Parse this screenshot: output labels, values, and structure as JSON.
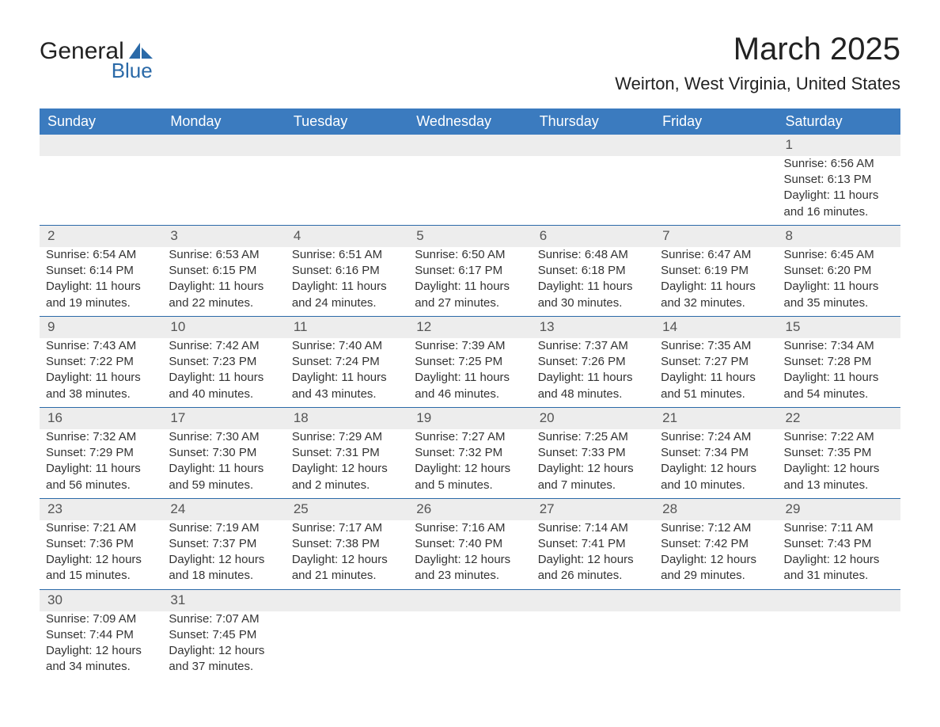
{
  "logo": {
    "general": "General",
    "blue": "Blue"
  },
  "title": "March 2025",
  "location": "Weirton, West Virginia, United States",
  "day_headers": [
    "Sunday",
    "Monday",
    "Tuesday",
    "Wednesday",
    "Thursday",
    "Friday",
    "Saturday"
  ],
  "colors": {
    "header_blue": "#3b7bbf",
    "row_grey": "#ededed",
    "border_blue": "#2b6aa8",
    "logo_blue": "#2b6aa8",
    "text_dark": "#333333",
    "background": "#ffffff"
  },
  "weeks": [
    [
      null,
      null,
      null,
      null,
      null,
      null,
      {
        "n": "1",
        "sunrise": "Sunrise: 6:56 AM",
        "sunset": "Sunset: 6:13 PM",
        "dl1": "Daylight: 11 hours",
        "dl2": "and 16 minutes."
      }
    ],
    [
      {
        "n": "2",
        "sunrise": "Sunrise: 6:54 AM",
        "sunset": "Sunset: 6:14 PM",
        "dl1": "Daylight: 11 hours",
        "dl2": "and 19 minutes."
      },
      {
        "n": "3",
        "sunrise": "Sunrise: 6:53 AM",
        "sunset": "Sunset: 6:15 PM",
        "dl1": "Daylight: 11 hours",
        "dl2": "and 22 minutes."
      },
      {
        "n": "4",
        "sunrise": "Sunrise: 6:51 AM",
        "sunset": "Sunset: 6:16 PM",
        "dl1": "Daylight: 11 hours",
        "dl2": "and 24 minutes."
      },
      {
        "n": "5",
        "sunrise": "Sunrise: 6:50 AM",
        "sunset": "Sunset: 6:17 PM",
        "dl1": "Daylight: 11 hours",
        "dl2": "and 27 minutes."
      },
      {
        "n": "6",
        "sunrise": "Sunrise: 6:48 AM",
        "sunset": "Sunset: 6:18 PM",
        "dl1": "Daylight: 11 hours",
        "dl2": "and 30 minutes."
      },
      {
        "n": "7",
        "sunrise": "Sunrise: 6:47 AM",
        "sunset": "Sunset: 6:19 PM",
        "dl1": "Daylight: 11 hours",
        "dl2": "and 32 minutes."
      },
      {
        "n": "8",
        "sunrise": "Sunrise: 6:45 AM",
        "sunset": "Sunset: 6:20 PM",
        "dl1": "Daylight: 11 hours",
        "dl2": "and 35 minutes."
      }
    ],
    [
      {
        "n": "9",
        "sunrise": "Sunrise: 7:43 AM",
        "sunset": "Sunset: 7:22 PM",
        "dl1": "Daylight: 11 hours",
        "dl2": "and 38 minutes."
      },
      {
        "n": "10",
        "sunrise": "Sunrise: 7:42 AM",
        "sunset": "Sunset: 7:23 PM",
        "dl1": "Daylight: 11 hours",
        "dl2": "and 40 minutes."
      },
      {
        "n": "11",
        "sunrise": "Sunrise: 7:40 AM",
        "sunset": "Sunset: 7:24 PM",
        "dl1": "Daylight: 11 hours",
        "dl2": "and 43 minutes."
      },
      {
        "n": "12",
        "sunrise": "Sunrise: 7:39 AM",
        "sunset": "Sunset: 7:25 PM",
        "dl1": "Daylight: 11 hours",
        "dl2": "and 46 minutes."
      },
      {
        "n": "13",
        "sunrise": "Sunrise: 7:37 AM",
        "sunset": "Sunset: 7:26 PM",
        "dl1": "Daylight: 11 hours",
        "dl2": "and 48 minutes."
      },
      {
        "n": "14",
        "sunrise": "Sunrise: 7:35 AM",
        "sunset": "Sunset: 7:27 PM",
        "dl1": "Daylight: 11 hours",
        "dl2": "and 51 minutes."
      },
      {
        "n": "15",
        "sunrise": "Sunrise: 7:34 AM",
        "sunset": "Sunset: 7:28 PM",
        "dl1": "Daylight: 11 hours",
        "dl2": "and 54 minutes."
      }
    ],
    [
      {
        "n": "16",
        "sunrise": "Sunrise: 7:32 AM",
        "sunset": "Sunset: 7:29 PM",
        "dl1": "Daylight: 11 hours",
        "dl2": "and 56 minutes."
      },
      {
        "n": "17",
        "sunrise": "Sunrise: 7:30 AM",
        "sunset": "Sunset: 7:30 PM",
        "dl1": "Daylight: 11 hours",
        "dl2": "and 59 minutes."
      },
      {
        "n": "18",
        "sunrise": "Sunrise: 7:29 AM",
        "sunset": "Sunset: 7:31 PM",
        "dl1": "Daylight: 12 hours",
        "dl2": "and 2 minutes."
      },
      {
        "n": "19",
        "sunrise": "Sunrise: 7:27 AM",
        "sunset": "Sunset: 7:32 PM",
        "dl1": "Daylight: 12 hours",
        "dl2": "and 5 minutes."
      },
      {
        "n": "20",
        "sunrise": "Sunrise: 7:25 AM",
        "sunset": "Sunset: 7:33 PM",
        "dl1": "Daylight: 12 hours",
        "dl2": "and 7 minutes."
      },
      {
        "n": "21",
        "sunrise": "Sunrise: 7:24 AM",
        "sunset": "Sunset: 7:34 PM",
        "dl1": "Daylight: 12 hours",
        "dl2": "and 10 minutes."
      },
      {
        "n": "22",
        "sunrise": "Sunrise: 7:22 AM",
        "sunset": "Sunset: 7:35 PM",
        "dl1": "Daylight: 12 hours",
        "dl2": "and 13 minutes."
      }
    ],
    [
      {
        "n": "23",
        "sunrise": "Sunrise: 7:21 AM",
        "sunset": "Sunset: 7:36 PM",
        "dl1": "Daylight: 12 hours",
        "dl2": "and 15 minutes."
      },
      {
        "n": "24",
        "sunrise": "Sunrise: 7:19 AM",
        "sunset": "Sunset: 7:37 PM",
        "dl1": "Daylight: 12 hours",
        "dl2": "and 18 minutes."
      },
      {
        "n": "25",
        "sunrise": "Sunrise: 7:17 AM",
        "sunset": "Sunset: 7:38 PM",
        "dl1": "Daylight: 12 hours",
        "dl2": "and 21 minutes."
      },
      {
        "n": "26",
        "sunrise": "Sunrise: 7:16 AM",
        "sunset": "Sunset: 7:40 PM",
        "dl1": "Daylight: 12 hours",
        "dl2": "and 23 minutes."
      },
      {
        "n": "27",
        "sunrise": "Sunrise: 7:14 AM",
        "sunset": "Sunset: 7:41 PM",
        "dl1": "Daylight: 12 hours",
        "dl2": "and 26 minutes."
      },
      {
        "n": "28",
        "sunrise": "Sunrise: 7:12 AM",
        "sunset": "Sunset: 7:42 PM",
        "dl1": "Daylight: 12 hours",
        "dl2": "and 29 minutes."
      },
      {
        "n": "29",
        "sunrise": "Sunrise: 7:11 AM",
        "sunset": "Sunset: 7:43 PM",
        "dl1": "Daylight: 12 hours",
        "dl2": "and 31 minutes."
      }
    ],
    [
      {
        "n": "30",
        "sunrise": "Sunrise: 7:09 AM",
        "sunset": "Sunset: 7:44 PM",
        "dl1": "Daylight: 12 hours",
        "dl2": "and 34 minutes."
      },
      {
        "n": "31",
        "sunrise": "Sunrise: 7:07 AM",
        "sunset": "Sunset: 7:45 PM",
        "dl1": "Daylight: 12 hours",
        "dl2": "and 37 minutes."
      },
      null,
      null,
      null,
      null,
      null
    ]
  ]
}
